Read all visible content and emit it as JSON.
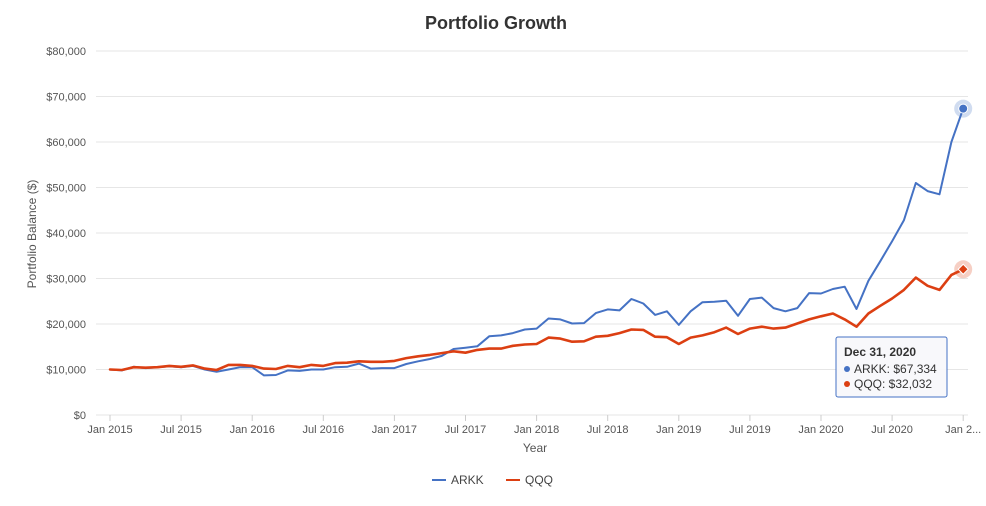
{
  "chart_data": {
    "type": "line",
    "title": "Portfolio Growth",
    "xlabel": "Year",
    "ylabel": "Portfolio Balance ($)",
    "ylim": [
      0,
      80000
    ],
    "y_ticks": [
      0,
      10000,
      20000,
      30000,
      40000,
      50000,
      60000,
      70000,
      80000
    ],
    "y_tick_labels": [
      "$0",
      "$10,000",
      "$20,000",
      "$30,000",
      "$40,000",
      "$50,000",
      "$60,000",
      "$70,000",
      "$80,000"
    ],
    "x_tick_labels": [
      "Jan 2015",
      "Jul 2015",
      "Jan 2016",
      "Jul 2016",
      "Jan 2017",
      "Jul 2017",
      "Jan 2018",
      "Jul 2018",
      "Jan 2019",
      "Jul 2019",
      "Jan 2020",
      "Jul 2020",
      "Jan 2..."
    ],
    "grid": true,
    "legend_position": "bottom-center",
    "categories": [
      "2015-01",
      "2015-02",
      "2015-03",
      "2015-04",
      "2015-05",
      "2015-06",
      "2015-07",
      "2015-08",
      "2015-09",
      "2015-10",
      "2015-11",
      "2015-12",
      "2016-01",
      "2016-02",
      "2016-03",
      "2016-04",
      "2016-05",
      "2016-06",
      "2016-07",
      "2016-08",
      "2016-09",
      "2016-10",
      "2016-11",
      "2016-12",
      "2017-01",
      "2017-02",
      "2017-03",
      "2017-04",
      "2017-05",
      "2017-06",
      "2017-07",
      "2017-08",
      "2017-09",
      "2017-10",
      "2017-11",
      "2017-12",
      "2018-01",
      "2018-02",
      "2018-03",
      "2018-04",
      "2018-05",
      "2018-06",
      "2018-07",
      "2018-08",
      "2018-09",
      "2018-10",
      "2018-11",
      "2018-12",
      "2019-01",
      "2019-02",
      "2019-03",
      "2019-04",
      "2019-05",
      "2019-06",
      "2019-07",
      "2019-08",
      "2019-09",
      "2019-10",
      "2019-11",
      "2019-12",
      "2020-01",
      "2020-02",
      "2020-03",
      "2020-04",
      "2020-05",
      "2020-06",
      "2020-07",
      "2020-08",
      "2020-09",
      "2020-10",
      "2020-11",
      "2020-12",
      "2021-01"
    ],
    "series": [
      {
        "name": "ARKK",
        "color": "#4572c4",
        "values": [
          10000,
          9800,
          10600,
          10300,
          10500,
          10700,
          10500,
          10800,
          10000,
          9500,
          10000,
          10500,
          10500,
          8700,
          8800,
          9800,
          9700,
          10000,
          10000,
          10500,
          10600,
          11300,
          10200,
          10300,
          10300,
          11200,
          11800,
          12300,
          13000,
          14500,
          14800,
          15100,
          17300,
          17500,
          18000,
          18800,
          19000,
          21200,
          21000,
          20100,
          20200,
          22400,
          23200,
          23000,
          25500,
          24500,
          22000,
          22800,
          19800,
          22800,
          24800,
          24900,
          25100,
          21800,
          25500,
          25800,
          23500,
          22800,
          23500,
          26800,
          26700,
          27700,
          28200,
          23300,
          29500,
          33800,
          38200,
          42800,
          51000,
          49200,
          48500,
          60000,
          67334
        ]
      },
      {
        "name": "QQQ",
        "color": "#dc3f12",
        "values": [
          10000,
          9900,
          10500,
          10400,
          10500,
          10800,
          10600,
          10900,
          10200,
          9900,
          11000,
          11000,
          10800,
          10200,
          10100,
          10800,
          10500,
          11000,
          10800,
          11400,
          11500,
          11800,
          11700,
          11700,
          11900,
          12500,
          12900,
          13200,
          13600,
          14000,
          13700,
          14300,
          14600,
          14600,
          15200,
          15500,
          15600,
          17000,
          16800,
          16100,
          16200,
          17200,
          17400,
          18000,
          18800,
          18700,
          17200,
          17100,
          15600,
          17000,
          17500,
          18200,
          19200,
          17800,
          19000,
          19400,
          19000,
          19200,
          20100,
          21000,
          21700,
          22300,
          21000,
          19400,
          22300,
          24000,
          25600,
          27500,
          30200,
          28400,
          27500,
          30800,
          32032
        ]
      }
    ],
    "tooltip": {
      "date": "Dec 31, 2020",
      "lines": [
        "ARKK: $67,334",
        "QQQ: $32,032"
      ]
    }
  }
}
